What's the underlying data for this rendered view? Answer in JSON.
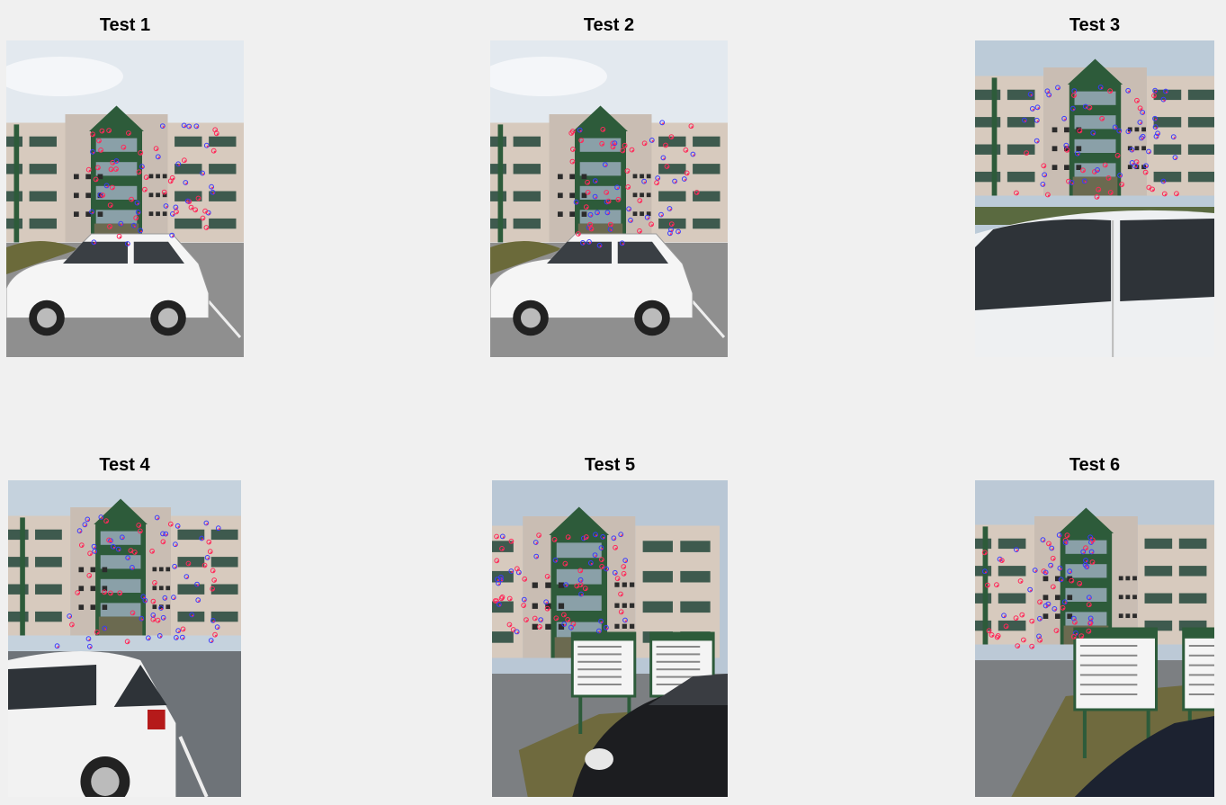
{
  "panels": [
    {
      "title": "Test 1",
      "scene": "front-far",
      "sky": "#e3e9ef"
    },
    {
      "title": "Test 2",
      "scene": "front-far",
      "sky": "#e3e9ef"
    },
    {
      "title": "Test 3",
      "scene": "car-close",
      "sky": "#bccbd8"
    },
    {
      "title": "Test 4",
      "scene": "car-left",
      "sky": "#c5d2dd"
    },
    {
      "title": "Test 5",
      "scene": "signs-right",
      "sky": "#b9c7d5"
    },
    {
      "title": "Test 6",
      "scene": "signs-center",
      "sky": "#bcc9d6"
    }
  ],
  "colors": {
    "background": "#f0f0f0",
    "facade": "#c9bdb3",
    "wing": "#d7cabe",
    "green": "#2d5b3a",
    "asphalt": "#8f8f8f",
    "marker_red": "#ff2a5a",
    "marker_blue": "#3a3aff"
  }
}
